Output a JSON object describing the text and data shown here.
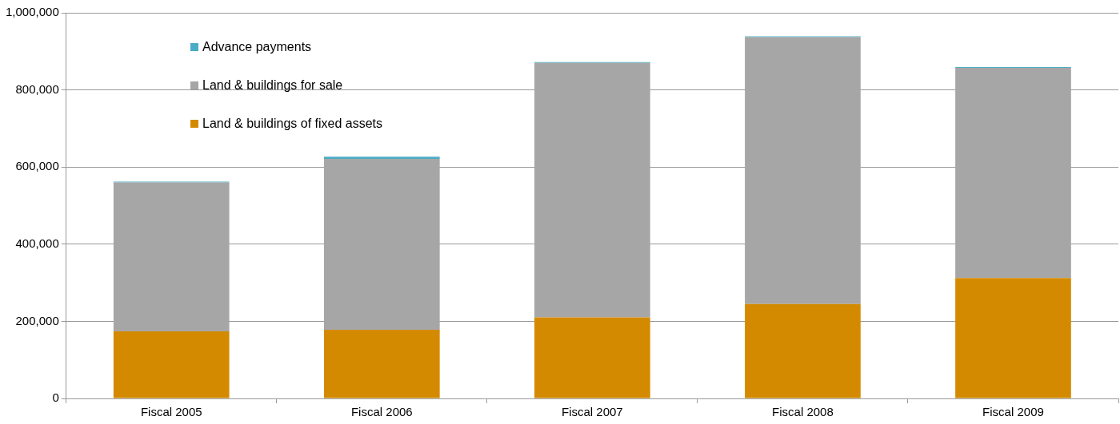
{
  "chart_data": {
    "type": "bar",
    "stacked": true,
    "categories": [
      "Fiscal 2005",
      "Fiscal 2006",
      "Fiscal 2007",
      "Fiscal 2008",
      "Fiscal 2009"
    ],
    "series": [
      {
        "name": "Land & buildings of fixed assets",
        "color": "#d48a00",
        "values": [
          174000,
          178000,
          210000,
          245000,
          312000
        ]
      },
      {
        "name": "Land & buildings for sale",
        "color": "#a6a6a6",
        "values": [
          386000,
          443000,
          660000,
          692000,
          545000
        ]
      },
      {
        "name": "Advance payments",
        "color": "#4bacc6",
        "values": [
          2000,
          6000,
          2000,
          2000,
          2000
        ]
      }
    ],
    "ylim": [
      0,
      1000000
    ],
    "yticks": [
      {
        "value": 0,
        "label": "0"
      },
      {
        "value": 200000,
        "label": "200,000"
      },
      {
        "value": 400000,
        "label": "400,000"
      },
      {
        "value": 600000,
        "label": "600,000"
      },
      {
        "value": 800000,
        "label": "800,000"
      },
      {
        "value": 1000000,
        "label": "1,000,000"
      }
    ],
    "grid": "y",
    "legend": "top left"
  }
}
